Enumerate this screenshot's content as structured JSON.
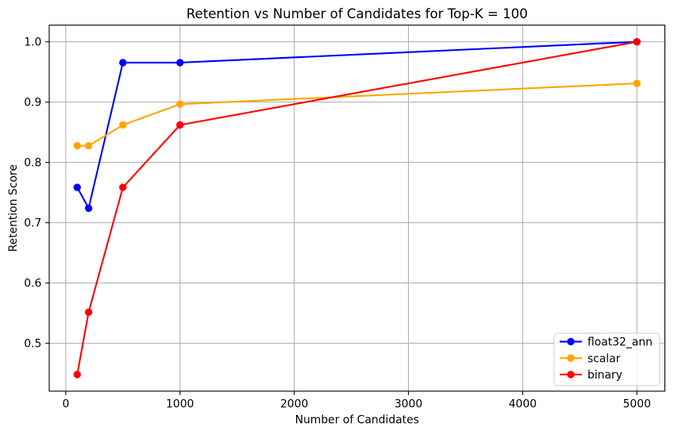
{
  "chart_data": {
    "type": "line",
    "title": "Retention vs Number of Candidates for Top-K = 100",
    "xlabel": "Number of Candidates",
    "ylabel": "Retention Score",
    "x": [
      100,
      200,
      500,
      1000,
      5000
    ],
    "series": [
      {
        "name": "float32_ann",
        "color": "#0000ff",
        "values": [
          0.7586,
          0.7241,
          0.9655,
          0.9655,
          1.0
        ]
      },
      {
        "name": "scalar",
        "color": "#ffa500",
        "values": [
          0.8276,
          0.8276,
          0.8621,
          0.8966,
          0.931
        ]
      },
      {
        "name": "binary",
        "color": "#ff0000",
        "values": [
          0.4483,
          0.5517,
          0.7586,
          0.8621,
          1.0
        ]
      }
    ],
    "xticks": [
      0,
      1000,
      2000,
      3000,
      4000,
      5000
    ],
    "yticks": [
      0.5,
      0.6,
      0.7,
      0.8,
      0.9,
      1.0
    ],
    "xlim": [
      -145,
      5245
    ],
    "ylim": [
      0.4207,
      1.0276
    ],
    "grid": true,
    "grid_color": "#b0b0b0",
    "spine_color": "#000000",
    "legend_position": "lower right",
    "legend_border_color": "#cccccc",
    "legend_background": "rgba(255,255,255,0.8)",
    "marker": "o"
  }
}
